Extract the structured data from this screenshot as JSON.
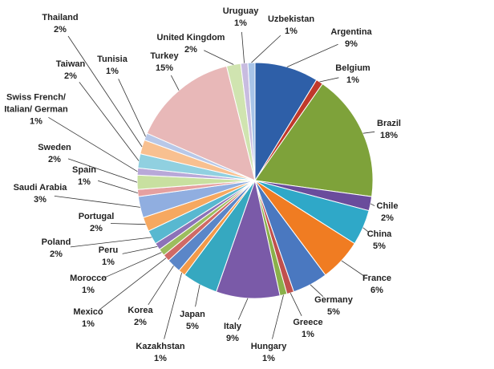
{
  "chart_data": {
    "type": "pie",
    "categories": [
      "Argentina",
      "Belgium",
      "Brazil",
      "Chile",
      "China",
      "France",
      "Germany",
      "Greece",
      "Hungary",
      "Italy",
      "Japan",
      "Kazakhstan",
      "Korea",
      "Mexico",
      "Morocco",
      "Peru",
      "Poland",
      "Portugal",
      "Saudi Arabia",
      "Spain",
      "Sweden",
      "Swiss French/ Italian/ German",
      "Taiwan",
      "Thailand",
      "Tunisia",
      "Turkey",
      "United Kingdom",
      "Uruguay",
      "Uzbekistan"
    ],
    "values": [
      9,
      1,
      18,
      2,
      5,
      6,
      5,
      1,
      1,
      9,
      5,
      1,
      2,
      1,
      1,
      1,
      2,
      2,
      3,
      1,
      2,
      1,
      2,
      2,
      1,
      15,
      2,
      1,
      1
    ],
    "value_labels": [
      "9%",
      "1%",
      "18%",
      "2%",
      "5%",
      "6%",
      "5%",
      "1%",
      "1%",
      "9%",
      "5%",
      "1%",
      "2%",
      "1%",
      "1%",
      "1%",
      "2%",
      "2%",
      "3%",
      "1%",
      "2%",
      "1%",
      "2%",
      "2%",
      "1%",
      "15%",
      "2%",
      "1%",
      "1%"
    ],
    "colors": [
      "#2e5fa8",
      "#c0392b",
      "#7ea23a",
      "#6a4c9c",
      "#2fa8c8",
      "#f07c22",
      "#4a78c0",
      "#c0504d",
      "#8ab04a",
      "#7a5aa8",
      "#36a8c0",
      "#f39a4a",
      "#5b86c8",
      "#d06a66",
      "#9cbd5e",
      "#8c72b8",
      "#58b8d0",
      "#f6a860",
      "#90aee0",
      "#e5a0a0",
      "#c8e0a0",
      "#b8a8d8",
      "#90d0e0",
      "#f8c090",
      "#b8c8e8",
      "#e8b8b8",
      "#d0e4b0",
      "#c8bce0",
      "#a8c4e8"
    ]
  }
}
